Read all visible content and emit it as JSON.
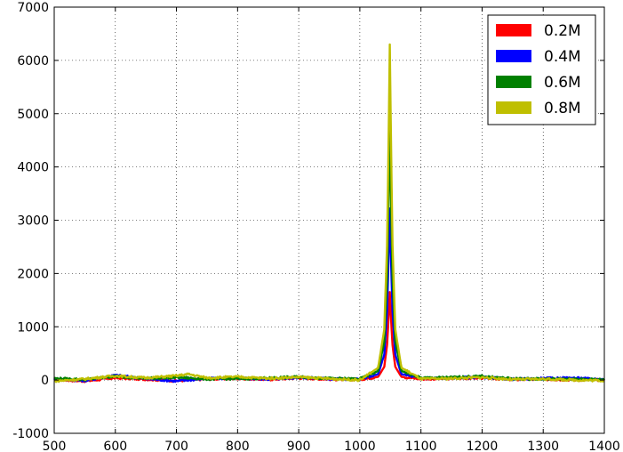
{
  "chart_data": {
    "type": "line",
    "title": "",
    "xlabel": "",
    "ylabel": "",
    "xlim": [
      500,
      1400
    ],
    "ylim": [
      -1000,
      7000
    ],
    "xticks": [
      500,
      600,
      700,
      800,
      900,
      1000,
      1100,
      1200,
      1300,
      1400
    ],
    "yticks": [
      -1000,
      0,
      1000,
      2000,
      3000,
      4000,
      5000,
      6000,
      7000
    ],
    "grid": true,
    "grid_style": "dotted",
    "legend_position": "top-right",
    "peak_center": 1049,
    "series": [
      {
        "name": "0.2M",
        "color": "#ff0000",
        "peak": 1650,
        "x": [
          500,
          550,
          600,
          650,
          700,
          750,
          800,
          850,
          900,
          950,
          1000,
          1030,
          1040,
          1045,
          1049,
          1053,
          1058,
          1068,
          1100,
          1150,
          1200,
          1250,
          1300,
          1350,
          1400
        ],
        "y": [
          10,
          -20,
          40,
          15,
          -15,
          20,
          30,
          10,
          40,
          15,
          10,
          60,
          250,
          700,
          1650,
          700,
          250,
          60,
          20,
          30,
          40,
          10,
          15,
          5,
          0
        ]
      },
      {
        "name": "0.4M",
        "color": "#0000ff",
        "peak": 3220,
        "x": [
          500,
          550,
          600,
          650,
          700,
          750,
          800,
          850,
          900,
          950,
          1000,
          1030,
          1040,
          1045,
          1049,
          1053,
          1058,
          1068,
          1100,
          1150,
          1200,
          1250,
          1300,
          1350,
          1400
        ],
        "y": [
          20,
          -10,
          90,
          25,
          -20,
          30,
          35,
          20,
          50,
          25,
          15,
          110,
          480,
          1380,
          3220,
          1380,
          480,
          110,
          35,
          40,
          55,
          15,
          30,
          40,
          10
        ]
      },
      {
        "name": "0.6M",
        "color": "#008000",
        "peak": 4780,
        "x": [
          500,
          550,
          600,
          650,
          700,
          750,
          800,
          850,
          900,
          950,
          1000,
          1030,
          1040,
          1045,
          1049,
          1053,
          1058,
          1068,
          1100,
          1150,
          1200,
          1250,
          1300,
          1350,
          1400
        ],
        "y": [
          30,
          10,
          70,
          30,
          50,
          20,
          25,
          35,
          60,
          30,
          20,
          170,
          720,
          2050,
          4780,
          2050,
          720,
          170,
          40,
          50,
          70,
          25,
          20,
          15,
          10
        ]
      },
      {
        "name": "0.8M",
        "color": "#bfbf00",
        "peak": 6300,
        "x": [
          500,
          550,
          600,
          650,
          700,
          720,
          750,
          800,
          850,
          900,
          950,
          1000,
          1030,
          1040,
          1045,
          1049,
          1053,
          1058,
          1068,
          1100,
          1150,
          1200,
          1250,
          1300,
          1350,
          1400
        ],
        "y": [
          -20,
          20,
          80,
          40,
          80,
          110,
          40,
          60,
          30,
          55,
          25,
          0,
          230,
          950,
          2700,
          6300,
          2700,
          950,
          230,
          20,
          30,
          50,
          10,
          20,
          0,
          -10
        ]
      }
    ]
  }
}
